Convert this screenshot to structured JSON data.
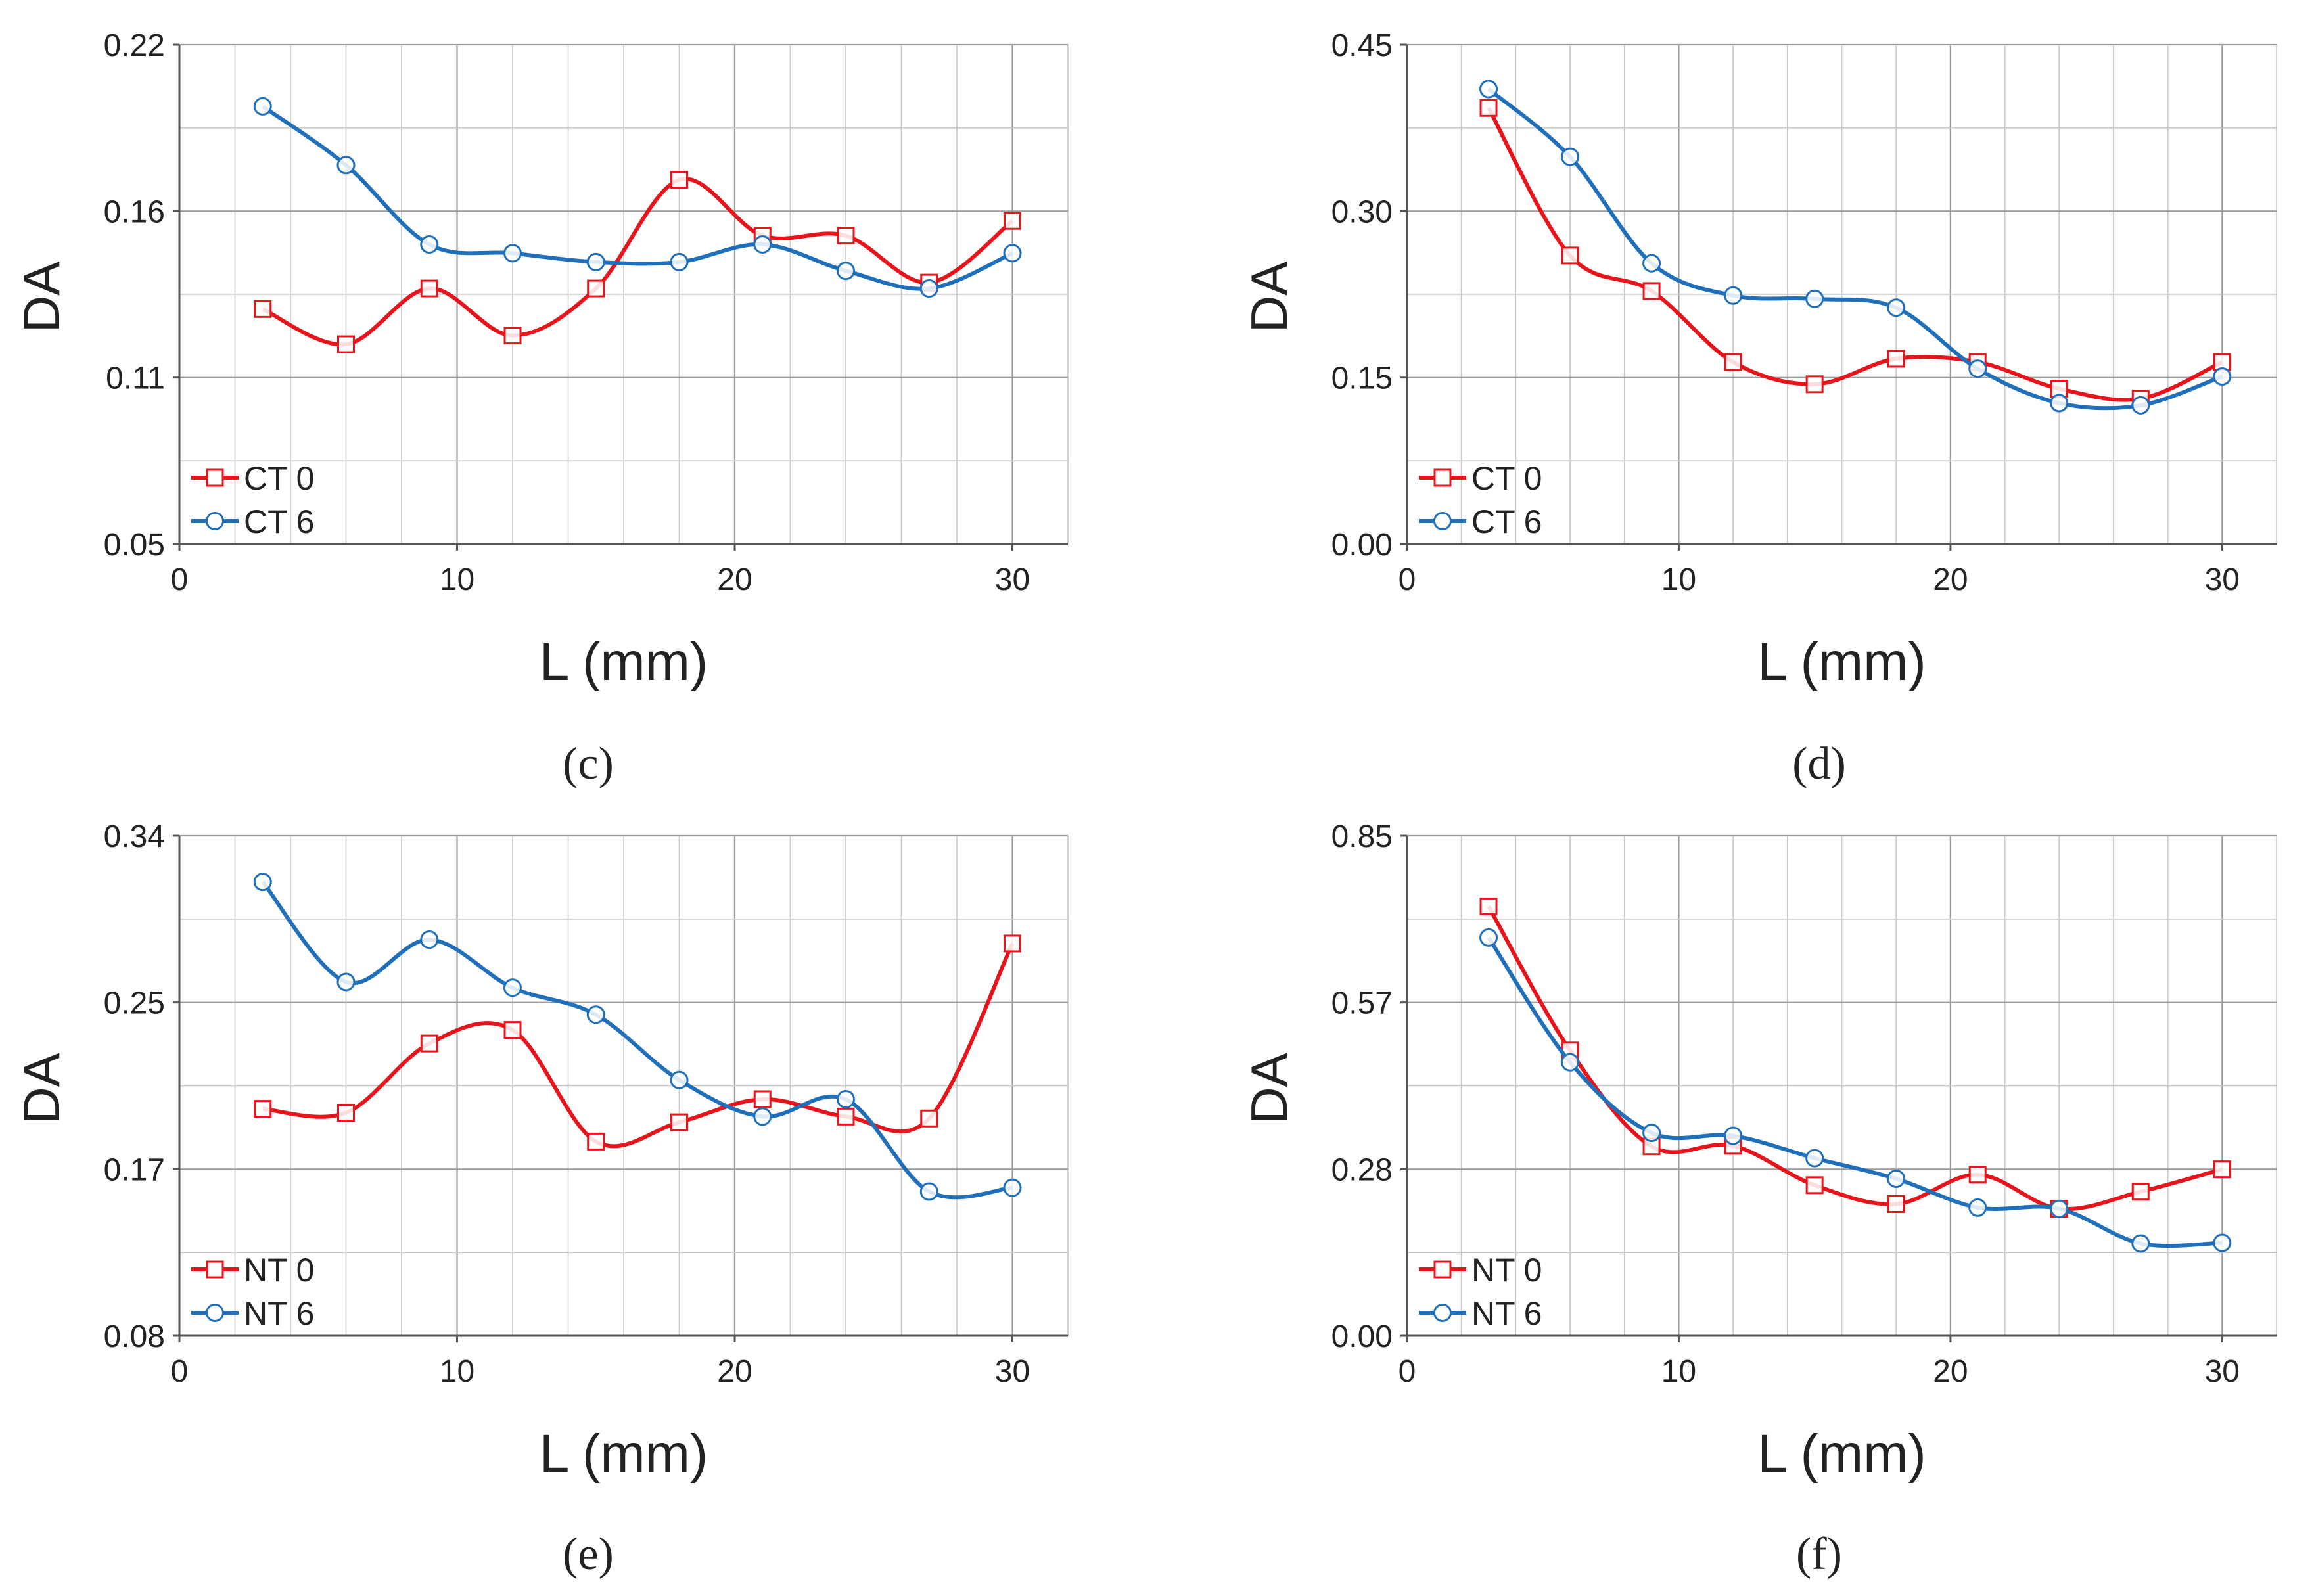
{
  "panels": [
    {
      "caption": "(c)",
      "ylabel": "DA",
      "xlabel": "L (mm)",
      "yticks": [
        "0.05",
        "0.11",
        "0.16",
        "0.22"
      ],
      "xticks": [
        "0",
        "10",
        "20",
        "30"
      ],
      "legend": [
        "CT 0",
        "CT 6"
      ]
    },
    {
      "caption": "(d)",
      "ylabel": "DA",
      "xlabel": "L (mm)",
      "yticks": [
        "0.00",
        "0.15",
        "0.30",
        "0.45"
      ],
      "xticks": [
        "0",
        "10",
        "20",
        "30"
      ],
      "legend": [
        "CT 0",
        "CT 6"
      ]
    },
    {
      "caption": "(e)",
      "ylabel": "DA",
      "xlabel": "L (mm)",
      "yticks": [
        "0.08",
        "0.17",
        "0.25",
        "0.34"
      ],
      "xticks": [
        "0",
        "10",
        "20",
        "30"
      ],
      "legend": [
        "NT 0",
        "NT 6"
      ]
    },
    {
      "caption": "(f)",
      "ylabel": "DA",
      "xlabel": "L (mm)",
      "yticks": [
        "0.00",
        "0.28",
        "0.57",
        "0.85"
      ],
      "xticks": [
        "0",
        "10",
        "20",
        "30"
      ],
      "legend": [
        "NT 0",
        "NT 6"
      ]
    }
  ],
  "colors": {
    "series0": "#e8141b",
    "series1": "#1f6fba",
    "grid": "#c8c8c8",
    "axis": "#555555"
  },
  "chart_data": [
    {
      "type": "line",
      "title": "",
      "xlabel": "L (mm)",
      "ylabel": "DA",
      "xlim": [
        0,
        32
      ],
      "ylim": [
        0.05,
        0.22
      ],
      "grid": true,
      "legend_position": "bottom-left",
      "x": [
        3,
        6,
        9,
        12,
        15,
        18,
        21,
        24,
        27,
        30
      ],
      "series": [
        {
          "name": "CT 0",
          "marker": "square",
          "values": [
            0.13,
            0.118,
            0.137,
            0.121,
            0.137,
            0.174,
            0.155,
            0.155,
            0.139,
            0.16
          ]
        },
        {
          "name": "CT 6",
          "marker": "circle",
          "values": [
            0.199,
            0.179,
            0.152,
            0.149,
            0.146,
            0.146,
            0.152,
            0.143,
            0.137,
            0.149
          ]
        }
      ]
    },
    {
      "type": "line",
      "title": "",
      "xlabel": "L (mm)",
      "ylabel": "DA",
      "xlim": [
        0,
        32
      ],
      "ylim": [
        0.0,
        0.45
      ],
      "grid": true,
      "legend_position": "bottom-left",
      "x": [
        3,
        6,
        9,
        12,
        15,
        18,
        21,
        24,
        27,
        30
      ],
      "series": [
        {
          "name": "CT 0",
          "marker": "square",
          "values": [
            0.393,
            0.26,
            0.228,
            0.164,
            0.144,
            0.167,
            0.164,
            0.14,
            0.131,
            0.164
          ]
        },
        {
          "name": "CT 6",
          "marker": "circle",
          "values": [
            0.41,
            0.349,
            0.253,
            0.224,
            0.221,
            0.213,
            0.158,
            0.127,
            0.125,
            0.151
          ]
        }
      ]
    },
    {
      "type": "line",
      "title": "",
      "xlabel": "L (mm)",
      "ylabel": "DA",
      "xlim": [
        0,
        32
      ],
      "ylim": [
        0.08,
        0.34
      ],
      "grid": true,
      "legend_position": "bottom-left",
      "x": [
        3,
        6,
        9,
        12,
        15,
        18,
        21,
        24,
        27,
        30
      ],
      "series": [
        {
          "name": "NT 0",
          "marker": "square",
          "values": [
            0.198,
            0.196,
            0.232,
            0.239,
            0.181,
            0.191,
            0.203,
            0.194,
            0.193,
            0.284
          ]
        },
        {
          "name": "NT 6",
          "marker": "circle",
          "values": [
            0.316,
            0.264,
            0.286,
            0.261,
            0.247,
            0.213,
            0.194,
            0.203,
            0.155,
            0.157
          ]
        }
      ]
    },
    {
      "type": "line",
      "title": "",
      "xlabel": "L (mm)",
      "ylabel": "DA",
      "xlim": [
        0,
        32
      ],
      "ylim": [
        0.0,
        0.85
      ],
      "grid": true,
      "legend_position": "bottom-left",
      "x": [
        3,
        6,
        9,
        12,
        15,
        18,
        21,
        24,
        27,
        30
      ],
      "series": [
        {
          "name": "NT 0",
          "marker": "square",
          "values": [
            0.73,
            0.485,
            0.322,
            0.323,
            0.256,
            0.224,
            0.274,
            0.216,
            0.245,
            0.283
          ]
        },
        {
          "name": "NT 6",
          "marker": "circle",
          "values": [
            0.677,
            0.465,
            0.345,
            0.34,
            0.302,
            0.267,
            0.218,
            0.216,
            0.157,
            0.158
          ]
        }
      ]
    }
  ]
}
